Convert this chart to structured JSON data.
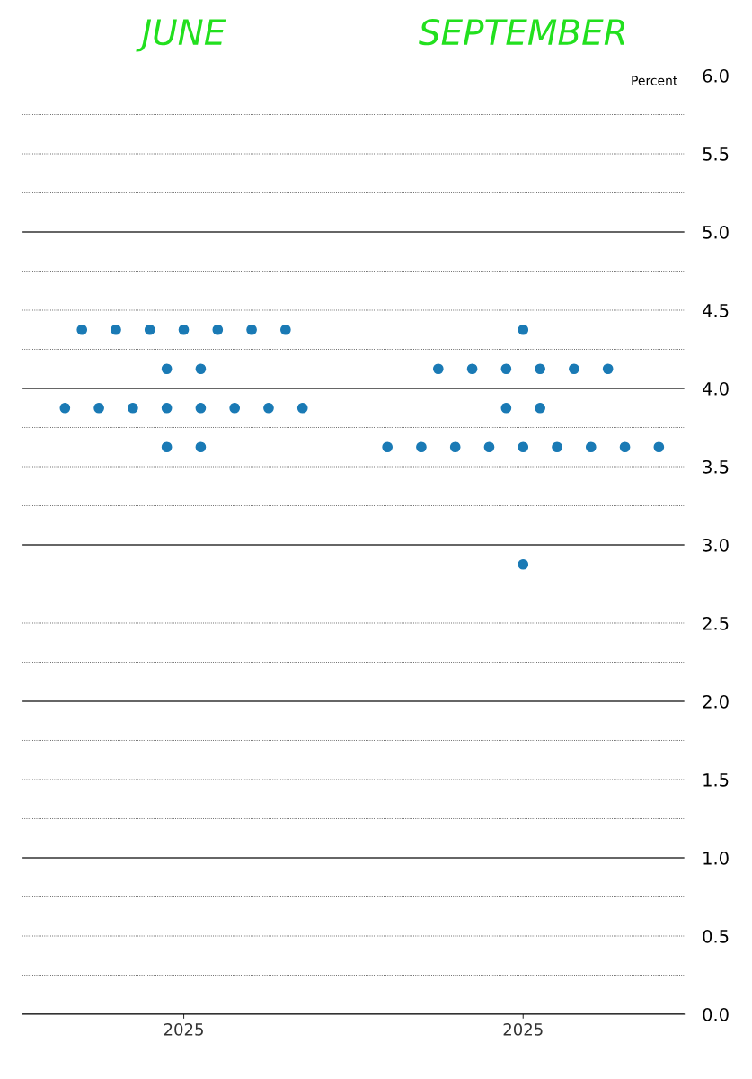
{
  "chart_data": {
    "type": "scatter",
    "ylabel": "Percent",
    "annotations": [
      "JUNE",
      "SEPTEMBER"
    ],
    "categories": [
      null,
      null,
      null,
      null,
      null,
      null,
      null,
      null,
      "2025",
      null,
      null,
      null,
      null,
      null,
      null,
      null,
      null,
      null,
      null,
      null,
      null,
      null,
      null,
      null,
      null,
      null,
      null,
      null,
      "2025",
      null,
      null,
      null,
      null,
      null,
      null,
      null,
      null
    ],
    "series": [
      {
        "color": "#1a7ab5",
        "values": [
          null,
          null,
          4.375,
          null,
          4.375,
          null,
          4.375,
          null,
          4.375,
          null,
          4.375,
          null,
          4.375,
          null,
          4.375,
          null,
          null,
          null,
          null,
          null,
          null,
          null,
          null,
          null,
          null,
          null,
          null,
          null,
          4.375,
          null,
          null,
          null,
          null,
          null,
          null,
          null,
          null
        ]
      },
      {
        "color": "#1a7ab5",
        "values": [
          null,
          null,
          null,
          null,
          null,
          null,
          null,
          4.125,
          null,
          4.125,
          null,
          null,
          null,
          null,
          null,
          null,
          null,
          null,
          null,
          null,
          null,
          null,
          null,
          4.125,
          null,
          4.125,
          null,
          4.125,
          null,
          4.125,
          null,
          4.125,
          null,
          4.125,
          null,
          null,
          null
        ]
      },
      {
        "color": "#1a7ab5",
        "values": [
          null,
          3.875,
          null,
          3.875,
          null,
          3.875,
          null,
          3.875,
          null,
          3.875,
          null,
          3.875,
          null,
          3.875,
          null,
          3.875,
          null,
          null,
          null,
          null,
          null,
          null,
          null,
          null,
          null,
          null,
          null,
          3.875,
          null,
          3.875,
          null,
          null,
          null,
          null,
          null,
          null,
          null
        ]
      },
      {
        "color": "#1a7ab5",
        "values": [
          null,
          null,
          null,
          null,
          null,
          null,
          null,
          3.625,
          null,
          3.625,
          null,
          null,
          null,
          null,
          null,
          null,
          null,
          null,
          null,
          null,
          3.625,
          null,
          3.625,
          null,
          3.625,
          null,
          3.625,
          null,
          3.625,
          null,
          3.625,
          null,
          3.625,
          null,
          3.625,
          null,
          3.625
        ]
      },
      {
        "color": "#1a7ab5",
        "values": [
          null,
          null,
          null,
          null,
          null,
          null,
          null,
          null,
          null,
          null,
          null,
          null,
          null,
          null,
          null,
          null,
          null,
          null,
          null,
          null,
          null,
          null,
          null,
          null,
          null,
          null,
          null,
          null,
          2.875,
          null,
          null,
          null,
          null,
          null,
          null,
          null,
          null
        ]
      }
    ],
    "ylim": [
      0,
      6
    ],
    "yticks": [
      {
        "value": 0,
        "label": "0.0"
      },
      {
        "value": 0.25,
        "label": null
      },
      {
        "value": 0.5,
        "label": "0.5"
      },
      {
        "value": 0.75,
        "label": null
      },
      {
        "value": 1,
        "label": "1.0"
      },
      {
        "value": 1.25,
        "label": null
      },
      {
        "value": 1.5,
        "label": "1.5"
      },
      {
        "value": 1.75,
        "label": null
      },
      {
        "value": 2,
        "label": "2.0"
      },
      {
        "value": 2.25,
        "label": null
      },
      {
        "value": 2.5,
        "label": "2.5"
      },
      {
        "value": 2.75,
        "label": null
      },
      {
        "value": 3,
        "label": "3.0"
      },
      {
        "value": 3.25,
        "label": null
      },
      {
        "value": 3.5,
        "label": "3.5"
      },
      {
        "value": 3.75,
        "label": null
      },
      {
        "value": 4,
        "label": "4.0"
      },
      {
        "value": 4.25,
        "label": null
      },
      {
        "value": 4.5,
        "label": "4.5"
      },
      {
        "value": 4.75,
        "label": null
      },
      {
        "value": 5,
        "label": "5.0"
      },
      {
        "value": 5.25,
        "label": null
      },
      {
        "value": 5.5,
        "label": "5.5"
      },
      {
        "value": 5.75,
        "label": null
      },
      {
        "value": 6,
        "label": "6.0"
      }
    ],
    "grid": "y",
    "marker": "circle"
  }
}
